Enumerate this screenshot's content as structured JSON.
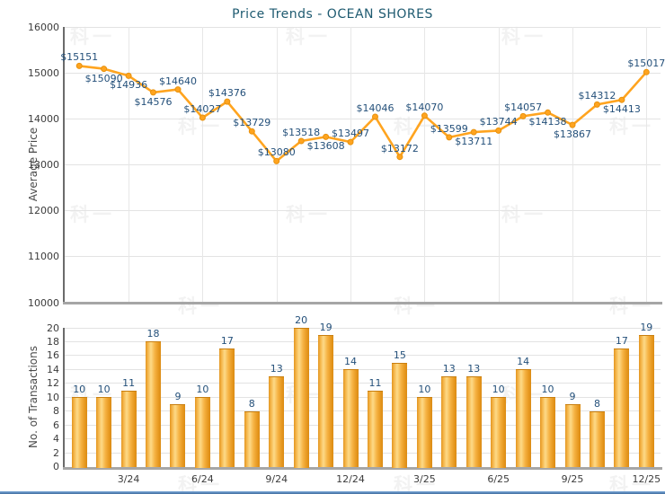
{
  "title": "Price Trends - OCEAN SHORES",
  "watermark_text": "科一",
  "colors": {
    "line_orange": "#FFA41F",
    "marker_stroke": "#E8920E",
    "bar_orange": "#F2A93B",
    "value_label_navy": "#24507A",
    "title_teal": "#1E5A70",
    "axis_text": "#3C3C3C",
    "grid": "#E3E3E3",
    "footer_blue": "#426F9F"
  },
  "chart_data": [
    {
      "type": "line",
      "title": "Price Trends - OCEAN SHORES",
      "ylabel": "Average Price",
      "ylim": [
        10000,
        16000
      ],
      "ytick_step": 1000,
      "grid": true,
      "legend_position": "none",
      "values": [
        15151,
        15090,
        14936,
        14576,
        14640,
        14027,
        14376,
        13729,
        13080,
        13518,
        13608,
        13497,
        14046,
        13172,
        14070,
        13599,
        13711,
        13744,
        14057,
        14138,
        13867,
        14312,
        14413,
        15017
      ],
      "point_labels": [
        "$15151",
        "$15090",
        "$14936",
        "$14576",
        "$14640",
        "$14027",
        "$14376",
        "$13729",
        "$13080",
        "$13518",
        "$13608",
        "$13497",
        "$14046",
        "$13172",
        "$14070",
        "$13599",
        "$13711",
        "$13744",
        "$14057",
        "$14138",
        "$13867",
        "$14312",
        "$14413",
        "$15017"
      ],
      "label_side": [
        "above",
        "below",
        "below",
        "below",
        "above",
        "above",
        "above",
        "above",
        "above",
        "above",
        "below",
        "above",
        "above",
        "above",
        "above",
        "above",
        "below",
        "above",
        "above",
        "below",
        "below",
        "above",
        "below",
        "above"
      ],
      "xtick_labels": [
        "3/24",
        "6/24",
        "9/24",
        "12/24",
        "3/25",
        "6/25",
        "9/25",
        "12/25"
      ],
      "xtick_indices": [
        2,
        5,
        8,
        11,
        14,
        17,
        20,
        23
      ]
    },
    {
      "type": "bar",
      "ylabel": "No. of Transactions",
      "ylim": [
        0,
        20
      ],
      "ytick_step": 2,
      "grid": true,
      "legend_position": "none",
      "values": [
        10,
        10,
        11,
        18,
        9,
        10,
        17,
        8,
        13,
        20,
        19,
        14,
        11,
        15,
        10,
        13,
        13,
        10,
        14,
        10,
        9,
        8,
        17,
        19
      ],
      "xtick_labels": [
        "3/24",
        "6/24",
        "9/24",
        "12/24",
        "3/25",
        "6/25",
        "9/25",
        "12/25"
      ],
      "xtick_indices": [
        2,
        5,
        8,
        11,
        14,
        17,
        20,
        23
      ]
    }
  ]
}
